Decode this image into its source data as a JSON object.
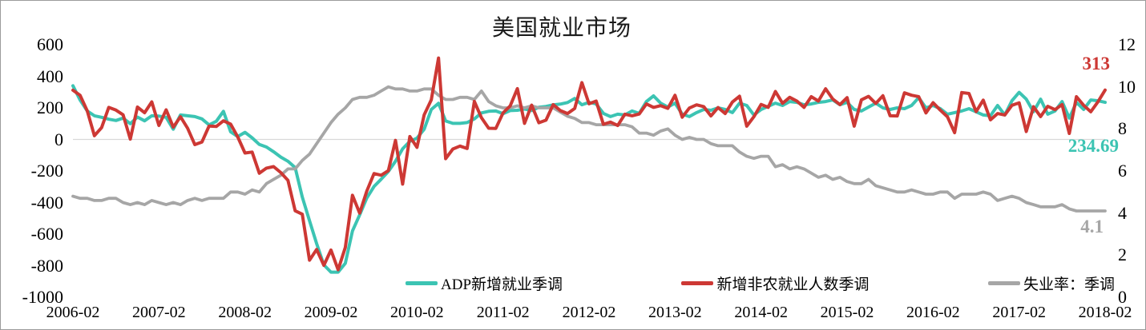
{
  "chart_data": {
    "type": "line",
    "title": "美国就业市场",
    "grid": "zero-line-only",
    "legend_position": "bottom",
    "x_frequency": "monthly",
    "x_range": [
      "2006-02",
      "2018-02"
    ],
    "x_tick_labels": [
      "2006-02",
      "2007-02",
      "2008-02",
      "2009-02",
      "2010-02",
      "2011-02",
      "2012-02",
      "2013-02",
      "2014-02",
      "2015-02",
      "2016-02",
      "2017-02",
      "2018-02"
    ],
    "left_axis": {
      "min": -1000,
      "max": 600,
      "ticks": [
        600,
        400,
        200,
        0,
        -200,
        -400,
        -600,
        -800,
        -1000
      ]
    },
    "right_axis": {
      "min": 0,
      "max": 12,
      "ticks": [
        12,
        10,
        8,
        6,
        4,
        2,
        0
      ]
    },
    "zero_gridline_color": "#d9d9d9",
    "series": [
      {
        "name": "ADP新增就业季调",
        "axis": "left",
        "color": "#3cc4b3",
        "values": [
          340,
          250,
          180,
          150,
          140,
          128,
          120,
          135,
          100,
          142,
          118,
          150,
          148,
          140,
          65,
          155,
          150,
          145,
          130,
          92,
          115,
          178,
          48,
          18,
          45,
          10,
          -32,
          -48,
          -78,
          -112,
          -138,
          -178,
          -365,
          -515,
          -660,
          -795,
          -841,
          -841,
          -785,
          -580,
          -478,
          -371,
          -298,
          -252,
          -203,
          -138,
          -60,
          -12,
          8,
          65,
          190,
          229,
          117,
          102,
          102,
          107,
          130,
          168,
          178,
          180,
          163,
          183,
          185,
          193,
          183,
          204,
          209,
          219,
          224,
          234,
          260,
          220,
          235,
          225,
          165,
          145,
          160,
          155,
          180,
          165,
          240,
          276,
          230,
          205,
          230,
          160,
          145,
          170,
          190,
          185,
          200,
          190,
          170,
          230,
          215,
          155,
          190,
          210,
          230,
          215,
          240,
          235,
          220,
          225,
          235,
          240,
          250,
          220,
          235,
          190,
          180,
          205,
          230,
          200,
          190,
          200,
          195,
          215,
          265,
          200,
          215,
          195,
          160,
          170,
          180,
          195,
          175,
          155,
          150,
          215,
          155,
          245,
          298,
          255,
          175,
          255,
          160,
          180,
          240,
          135,
          235,
          190,
          250,
          245,
          234.69
        ]
      },
      {
        "name": "新增非农就业人数季调",
        "axis": "left",
        "color": "#cd3834",
        "values": [
          312,
          280,
          181,
          24,
          75,
          203,
          186,
          156,
          2,
          205,
          169,
          238,
          88,
          188,
          78,
          144,
          71,
          -33,
          -16,
          85,
          82,
          118,
          97,
          15,
          -86,
          -80,
          -214,
          -182,
          -172,
          -210,
          -259,
          -452,
          -474,
          -765,
          -697,
          -798,
          -701,
          -826,
          -684,
          -354,
          -467,
          -327,
          -216,
          -227,
          -198,
          -6,
          -283,
          18,
          -50,
          156,
          251,
          516,
          -122,
          -61,
          -42,
          -57,
          241,
          137,
          71,
          70,
          168,
          212,
          322,
          102,
          217,
          106,
          122,
          221,
          183,
          164,
          196,
          360,
          226,
          243,
          96,
          110,
          88,
          160,
          150,
          161,
          225,
          203,
          214,
          197,
          280,
          141,
          199,
          219,
          208,
          149,
          202,
          164,
          237,
          274,
          84,
          144,
          222,
          203,
          304,
          229,
          267,
          243,
          203,
          271,
          243,
          321,
          256,
          221,
          265,
          84,
          251,
          273,
          228,
          277,
          150,
          149,
          295,
          280,
          271,
          168,
          233,
          186,
          144,
          43,
          297,
          291,
          176,
          249,
          124,
          164,
          155,
          216,
          232,
          50,
          207,
          145,
          210,
          189,
          221,
          38,
          271,
          216,
          175,
          239,
          313
        ]
      },
      {
        "name": "失业率：季调",
        "axis": "right",
        "color": "#a6a6a6",
        "values": [
          4.8,
          4.7,
          4.7,
          4.6,
          4.6,
          4.7,
          4.7,
          4.5,
          4.4,
          4.5,
          4.4,
          4.6,
          4.5,
          4.4,
          4.5,
          4.4,
          4.6,
          4.7,
          4.6,
          4.7,
          4.7,
          4.7,
          5.0,
          5.0,
          4.9,
          5.1,
          5.0,
          5.4,
          5.6,
          5.8,
          6.1,
          6.1,
          6.5,
          6.8,
          7.3,
          7.8,
          8.3,
          8.7,
          9.0,
          9.4,
          9.5,
          9.5,
          9.6,
          9.8,
          10.0,
          9.9,
          9.9,
          9.8,
          9.8,
          9.9,
          9.9,
          9.6,
          9.4,
          9.4,
          9.5,
          9.5,
          9.4,
          9.8,
          9.3,
          9.1,
          9.0,
          9.0,
          9.1,
          9.0,
          9.1,
          9.0,
          9.0,
          9.0,
          8.8,
          8.6,
          8.5,
          8.3,
          8.3,
          8.2,
          8.2,
          8.2,
          8.2,
          8.2,
          8.1,
          7.8,
          7.8,
          7.7,
          7.9,
          8.0,
          7.7,
          7.5,
          7.6,
          7.5,
          7.5,
          7.3,
          7.2,
          7.2,
          7.2,
          6.9,
          6.7,
          6.6,
          6.7,
          6.7,
          6.2,
          6.3,
          6.1,
          6.2,
          6.1,
          5.9,
          5.7,
          5.8,
          5.6,
          5.7,
          5.5,
          5.4,
          5.4,
          5.6,
          5.3,
          5.2,
          5.1,
          5.0,
          5.0,
          5.1,
          5.0,
          4.9,
          4.9,
          5.0,
          5.0,
          4.7,
          4.9,
          4.9,
          4.9,
          5.0,
          4.9,
          4.6,
          4.7,
          4.8,
          4.7,
          4.5,
          4.4,
          4.3,
          4.3,
          4.3,
          4.4,
          4.2,
          4.1,
          4.1,
          4.1,
          4.1,
          4.1
        ]
      }
    ],
    "annotations": [
      {
        "text": "313",
        "series": "新增非农就业人数季调",
        "color": "#cd3834"
      },
      {
        "text": "234.69",
        "series": "ADP新增就业季调",
        "color": "#3cc4b3"
      },
      {
        "text": "4.1",
        "series": "失业率：季调",
        "color": "#a6a6a6"
      }
    ]
  }
}
